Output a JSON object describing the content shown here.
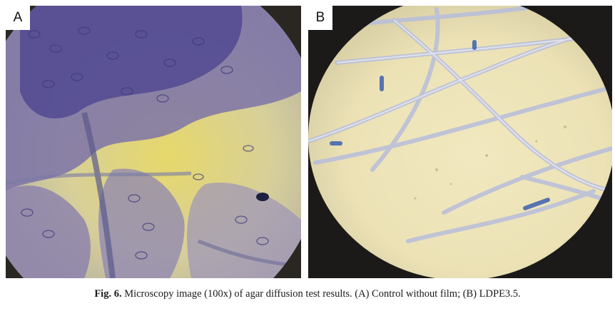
{
  "figure": {
    "panels": [
      {
        "label": "A"
      },
      {
        "label": "B"
      }
    ],
    "caption": {
      "label": "Fig. 6.",
      "text": "Microscopy image (100x) of agar diffusion test results. (A) Control without film; (B) LDPE3.5."
    }
  }
}
